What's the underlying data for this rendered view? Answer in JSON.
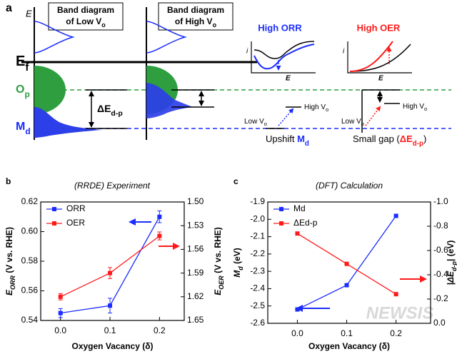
{
  "diagram": {
    "panel_label": "a",
    "energy_axis": "E",
    "columns": [
      {
        "line1": "Band diagram",
        "line2": {
          "main": "of Low V",
          "sub": "o"
        }
      },
      {
        "line1": "Band diagram",
        "line2": {
          "main": "of High V",
          "sub": "o"
        }
      }
    ],
    "fermi": {
      "main": "E",
      "sub": "f"
    },
    "op": {
      "main": "O",
      "sub": "p"
    },
    "md": {
      "main": "M",
      "sub": "d"
    },
    "gap": {
      "main": "ΔE",
      "sub": "d-p"
    },
    "orr_title": "High ORR",
    "oer_title": "High OER",
    "inset_y": "i",
    "inset_x": "E",
    "orr_inset_y": "i",
    "orr_inset_x": "E",
    "low_vo_1": {
      "main": "Low V",
      "sub": "o"
    },
    "high_vo_1": {
      "main": "High V",
      "sub": "o"
    },
    "upshift": {
      "pre": "Upshift ",
      "main": "M",
      "sub": "d"
    },
    "low_vo_2": {
      "main": "Low V",
      "sub": "o"
    },
    "high_vo_2": {
      "main": "High V",
      "sub": "o"
    },
    "small_gap": {
      "pre": "Small gap (",
      "main": "ΔE",
      "sub": "d-p",
      "rest": ")"
    },
    "watermark": "NEWSIS"
  },
  "chart_data": [
    {
      "type": "line",
      "panel_label": "b",
      "title": "(RRDE) Experiment",
      "xlabel": "Oxygen Vacancy (δ)",
      "ylabel": {
        "main": "E",
        "sub": "ORR",
        "rest": " (V vs. RHE)"
      },
      "y2label": {
        "main": "E",
        "sub": "OER",
        "rest": " (V vs. RHE)"
      },
      "x": [
        0,
        0.1,
        0.2
      ],
      "xlim": [
        -0.04,
        0.25
      ],
      "xticks": [
        {
          "value": 0,
          "label": "0.0"
        },
        0.1,
        0.2
      ],
      "ylim": [
        0.54,
        0.62
      ],
      "yticks": [
        0.54,
        0.56,
        0.58,
        {
          "value": 0.6,
          "label": "0.60"
        },
        0.62
      ],
      "y2lim": [
        1.65,
        1.5
      ],
      "y2ticks": [
        {
          "value": 1.5,
          "label": "1.50"
        },
        1.53,
        1.56,
        1.59,
        1.62,
        1.65
      ],
      "legend": "upper left",
      "series": [
        {
          "name": "ORR",
          "color": "#1a2cff",
          "values": [
            0.545,
            0.55,
            0.61
          ],
          "errors": [
            0.003,
            0.005,
            0.004
          ]
        },
        {
          "name": "OER",
          "color": "#ff1a1a",
          "axis": "y2",
          "values": [
            1.62,
            1.59,
            1.543
          ],
          "errors": [
            0.004,
            0.007,
            0.005
          ]
        }
      ]
    },
    {
      "type": "line",
      "panel_label": "c",
      "title": "(DFT) Calculation",
      "xlabel": "Oxygen Vacancy (δ)",
      "ylabel": {
        "main": "M",
        "sub": "d",
        "rest": " (eV)"
      },
      "y2label": {
        "main": "|ΔE",
        "sub": "d-p",
        "rest": "| (eV)"
      },
      "x": [
        0,
        0.1,
        0.2
      ],
      "xlim": [
        -0.06,
        0.27
      ],
      "xticks": [
        {
          "value": 0,
          "label": "0.0"
        },
        0.1,
        0.2
      ],
      "ylim": [
        -2.6,
        -1.9
      ],
      "yticks": [
        -2.6,
        -2.5,
        -2.4,
        -2.3,
        -2.2,
        -2.1,
        {
          "value": -2.0,
          "label": "-2.0"
        },
        -1.9
      ],
      "y2lim": [
        0,
        -1.0
      ],
      "y2ticks": [
        {
          "value": 0,
          "label": "0.0"
        },
        -0.2,
        -0.4,
        -0.6,
        -0.8,
        {
          "value": -1.0,
          "label": "-1.0"
        }
      ],
      "legend": "upper left",
      "series": [
        {
          "name": "Md",
          "color": "#1a2cff",
          "values": [
            -2.52,
            -2.38,
            -1.98
          ]
        },
        {
          "name": "ΔEd-p",
          "color": "#ff1a1a",
          "axis": "y2",
          "values": [
            -0.74,
            -0.49,
            -0.24
          ]
        }
      ]
    }
  ]
}
